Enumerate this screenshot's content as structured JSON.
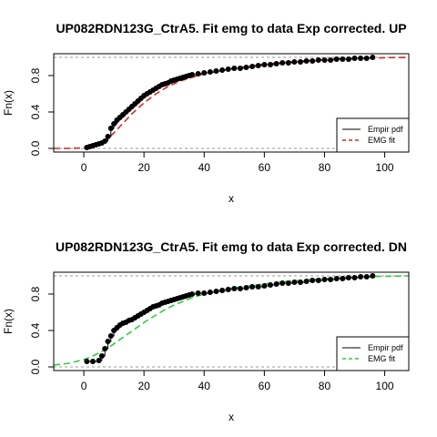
{
  "chart_data": [
    {
      "type": "line",
      "title": "UP082RDN123G_CtrA5. Fit emg to data Exp corrected. UP",
      "xlabel": "x",
      "ylabel": "Fn(x)",
      "xlim": [
        -10,
        108
      ],
      "ylim": [
        -0.04,
        1.04
      ],
      "x_ticks": [
        0,
        20,
        40,
        60,
        80,
        100
      ],
      "y_ticks": [
        0.0,
        0.4,
        0.8
      ],
      "y_tick_labels": [
        "0.0",
        "0.4",
        "0.8"
      ],
      "reference_lines_y": [
        0,
        1
      ],
      "legend": {
        "position": "bottom-right",
        "entries": [
          {
            "label": "Empir pdf",
            "color": "#000000",
            "style": "solid"
          },
          {
            "label": "EMG fit",
            "color": "#d62728",
            "style": "dashed"
          }
        ]
      },
      "series": [
        {
          "name": "Empir pdf",
          "color": "#000000",
          "style": "points",
          "x": [
            1,
            2,
            3,
            4,
            5,
            6,
            7,
            8,
            9,
            10,
            11,
            12,
            13,
            14,
            15,
            16,
            17,
            18,
            19,
            20,
            21,
            22,
            23,
            24,
            25,
            26,
            27,
            28,
            29,
            30,
            31,
            32,
            33,
            34,
            35,
            36,
            38,
            40,
            42,
            44,
            46,
            48,
            50,
            52,
            54,
            56,
            58,
            60,
            62,
            64,
            66,
            68,
            70,
            72,
            74,
            76,
            78,
            80,
            82,
            84,
            86,
            88,
            90,
            92,
            94,
            96
          ],
          "y": [
            0.01,
            0.02,
            0.03,
            0.04,
            0.05,
            0.06,
            0.08,
            0.13,
            0.22,
            0.27,
            0.31,
            0.34,
            0.37,
            0.4,
            0.43,
            0.46,
            0.49,
            0.52,
            0.55,
            0.58,
            0.6,
            0.62,
            0.64,
            0.66,
            0.68,
            0.7,
            0.71,
            0.72,
            0.74,
            0.75,
            0.76,
            0.77,
            0.78,
            0.79,
            0.8,
            0.81,
            0.82,
            0.83,
            0.84,
            0.85,
            0.86,
            0.87,
            0.88,
            0.88,
            0.89,
            0.9,
            0.91,
            0.92,
            0.92,
            0.93,
            0.94,
            0.94,
            0.95,
            0.95,
            0.96,
            0.96,
            0.97,
            0.97,
            0.97,
            0.98,
            0.98,
            0.98,
            0.99,
            0.99,
            0.99,
            1.0
          ]
        },
        {
          "name": "EMG fit",
          "color": "#d62728",
          "style": "dashed",
          "x": [
            -10,
            -5,
            0,
            2,
            4,
            6,
            8,
            10,
            12,
            14,
            16,
            18,
            20,
            22,
            24,
            26,
            28,
            30,
            32,
            34,
            36,
            38,
            40,
            45,
            50,
            55,
            60,
            65,
            70,
            75,
            80,
            85,
            90,
            95,
            100,
            108
          ],
          "y": [
            0.0,
            0.0,
            0.005,
            0.01,
            0.03,
            0.06,
            0.11,
            0.17,
            0.24,
            0.31,
            0.38,
            0.44,
            0.5,
            0.55,
            0.6,
            0.64,
            0.68,
            0.71,
            0.74,
            0.76,
            0.78,
            0.8,
            0.82,
            0.85,
            0.88,
            0.905,
            0.925,
            0.94,
            0.955,
            0.965,
            0.975,
            0.982,
            0.988,
            0.993,
            0.996,
            1.0
          ]
        }
      ]
    },
    {
      "type": "line",
      "title": "UP082RDN123G_CtrA5. Fit emg to data Exp corrected. DN",
      "xlabel": "x",
      "ylabel": "Fn(x)",
      "xlim": [
        -10,
        108
      ],
      "ylim": [
        -0.04,
        1.04
      ],
      "x_ticks": [
        0,
        20,
        40,
        60,
        80,
        100
      ],
      "y_ticks": [
        0.0,
        0.4,
        0.8
      ],
      "y_tick_labels": [
        "0.0",
        "0.4",
        "0.8"
      ],
      "reference_lines_y": [
        0,
        1
      ],
      "legend": {
        "position": "bottom-right",
        "entries": [
          {
            "label": "Empir pdf",
            "color": "#000000",
            "style": "solid"
          },
          {
            "label": "EMG fit",
            "color": "#2ecc40",
            "style": "dashed"
          }
        ]
      },
      "series": [
        {
          "name": "Empir pdf",
          "color": "#000000",
          "style": "points",
          "x": [
            1,
            3,
            5,
            6,
            7,
            8,
            9,
            10,
            11,
            12,
            13,
            14,
            15,
            16,
            17,
            18,
            19,
            20,
            21,
            22,
            23,
            24,
            25,
            26,
            27,
            28,
            29,
            30,
            31,
            32,
            33,
            34,
            35,
            36,
            38,
            40,
            42,
            44,
            46,
            48,
            50,
            52,
            54,
            56,
            58,
            60,
            62,
            64,
            66,
            68,
            70,
            72,
            74,
            76,
            78,
            80,
            82,
            84,
            86,
            88,
            90,
            92,
            94,
            96
          ],
          "y": [
            0.06,
            0.06,
            0.07,
            0.12,
            0.2,
            0.28,
            0.34,
            0.4,
            0.43,
            0.46,
            0.48,
            0.49,
            0.51,
            0.52,
            0.54,
            0.56,
            0.58,
            0.6,
            0.62,
            0.64,
            0.66,
            0.67,
            0.68,
            0.7,
            0.71,
            0.72,
            0.73,
            0.74,
            0.75,
            0.76,
            0.77,
            0.78,
            0.79,
            0.8,
            0.81,
            0.81,
            0.82,
            0.83,
            0.84,
            0.85,
            0.86,
            0.86,
            0.87,
            0.88,
            0.88,
            0.89,
            0.9,
            0.91,
            0.92,
            0.92,
            0.93,
            0.93,
            0.94,
            0.95,
            0.95,
            0.96,
            0.96,
            0.97,
            0.97,
            0.98,
            0.98,
            0.99,
            0.99,
            1.0
          ]
        },
        {
          "name": "EMG fit",
          "color": "#2ecc40",
          "style": "dashed",
          "x": [
            -10,
            -5,
            0,
            3,
            6,
            9,
            12,
            15,
            18,
            21,
            24,
            27,
            30,
            33,
            36,
            40,
            45,
            50,
            55,
            60,
            65,
            70,
            75,
            80,
            85,
            90,
            95,
            100,
            108
          ],
          "y": [
            0.02,
            0.04,
            0.08,
            0.12,
            0.17,
            0.23,
            0.3,
            0.37,
            0.44,
            0.51,
            0.57,
            0.63,
            0.68,
            0.72,
            0.76,
            0.8,
            0.84,
            0.87,
            0.89,
            0.91,
            0.93,
            0.945,
            0.958,
            0.968,
            0.977,
            0.985,
            0.991,
            0.995,
            1.0
          ]
        }
      ]
    }
  ]
}
